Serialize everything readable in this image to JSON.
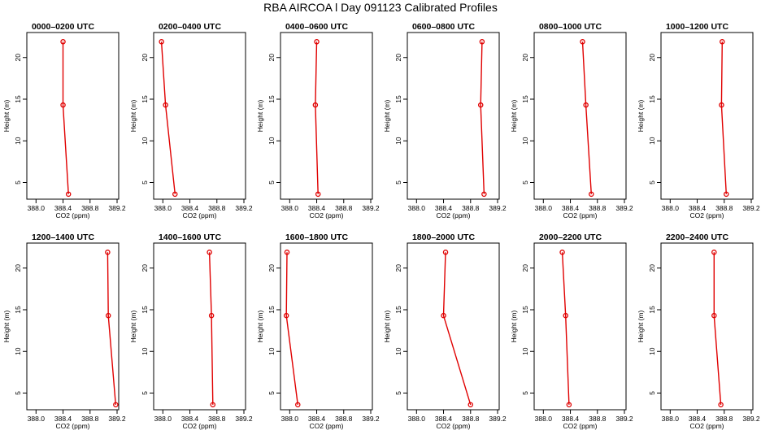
{
  "title": "RBA AIRCOA l  Day 091123  Calibrated Profiles",
  "colors": {
    "series": "#e00000",
    "axis": "#000000",
    "background": "#ffffff"
  },
  "chart_data": {
    "type": "line",
    "orientation": "vertical-profile",
    "layout": "small-multiples",
    "rows": 2,
    "cols": 6,
    "xlabel": "CO2 (ppm)",
    "ylabel": "Height (m)",
    "xlim": [
      387.9,
      389.2
    ],
    "ylim": [
      3,
      23
    ],
    "xticks": [
      388.0,
      388.4,
      388.8,
      389.2
    ],
    "xtick_labels": [
      "388.0",
      "388.4",
      "388.8",
      "389.2"
    ],
    "yticks": [
      5,
      10,
      15,
      20
    ],
    "ytick_labels": [
      "5",
      "10",
      "15",
      "20"
    ],
    "heights": [
      3.6,
      14.3,
      21.9
    ],
    "panels": [
      {
        "title": "0000–0200 UTC",
        "co2": [
          388.48,
          388.4,
          388.4
        ]
      },
      {
        "title": "0200–0400 UTC",
        "co2": [
          388.18,
          388.04,
          387.98
        ]
      },
      {
        "title": "0400–0600 UTC",
        "co2": [
          388.42,
          388.38,
          388.4
        ]
      },
      {
        "title": "0600–0800 UTC",
        "co2": [
          389.0,
          388.95,
          388.97
        ]
      },
      {
        "title": "0800–1000 UTC",
        "co2": [
          388.71,
          388.63,
          388.58
        ]
      },
      {
        "title": "1000–1200 UTC",
        "co2": [
          388.83,
          388.76,
          388.77
        ]
      },
      {
        "title": "1200–1400 UTC",
        "co2": [
          389.18,
          389.07,
          389.06
        ]
      },
      {
        "title": "1400–1600 UTC",
        "co2": [
          388.74,
          388.72,
          388.69
        ]
      },
      {
        "title": "1600–1800 UTC",
        "co2": [
          388.12,
          387.95,
          387.96
        ]
      },
      {
        "title": "1800–2000 UTC",
        "co2": [
          388.8,
          388.4,
          388.43
        ]
      },
      {
        "title": "2000–2200 UTC",
        "co2": [
          388.38,
          388.33,
          388.28
        ]
      },
      {
        "title": "2200–2400 UTC",
        "co2": [
          388.75,
          388.65,
          388.65
        ]
      }
    ]
  }
}
